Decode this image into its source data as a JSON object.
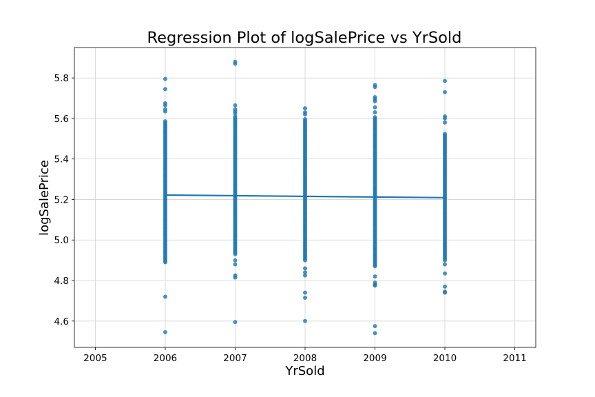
{
  "chart_data": {
    "type": "scatter",
    "title": "Regression Plot of logSalePrice vs YrSold",
    "xlabel": "YrSold",
    "ylabel": "logSalePrice",
    "xlim": [
      2004.7,
      2011.3
    ],
    "ylim": [
      4.47,
      5.95
    ],
    "xticks": [
      2005,
      2006,
      2007,
      2008,
      2009,
      2010,
      2011
    ],
    "yticks": [
      4.6,
      4.8,
      5.0,
      5.2,
      5.4,
      5.6,
      5.8
    ],
    "grid": true,
    "colors": {
      "points": "#1f77b4",
      "line": "#1f77b4",
      "grid": "#d3d3d3"
    },
    "points_by_year": [
      {
        "x": 2006,
        "outliers": [
          5.795,
          5.745,
          5.675,
          5.665,
          5.645,
          5.635,
          4.72,
          4.545
        ],
        "dense_ranges": [
          [
            4.89,
            5.59
          ]
        ]
      },
      {
        "x": 2007,
        "outliers": [
          5.88,
          5.87,
          5.665,
          5.645,
          5.635,
          5.625,
          4.9,
          4.88,
          4.825,
          4.815,
          4.595
        ],
        "dense_ranges": [
          [
            4.93,
            5.61
          ]
        ]
      },
      {
        "x": 2008,
        "outliers": [
          5.65,
          5.63,
          5.62,
          4.86,
          4.84,
          4.825,
          4.74,
          4.715,
          4.6
        ],
        "dense_ranges": [
          [
            4.9,
            5.6
          ]
        ]
      },
      {
        "x": 2009,
        "outliers": [
          5.765,
          5.755,
          5.705,
          5.695,
          5.685,
          5.655,
          5.63,
          4.82,
          4.79,
          4.78,
          4.775,
          4.575,
          4.54
        ],
        "dense_ranges": [
          [
            4.87,
            5.61
          ]
        ]
      },
      {
        "x": 2010,
        "outliers": [
          5.785,
          5.73,
          5.61,
          5.6,
          5.58,
          4.88,
          4.835,
          4.77,
          4.745,
          4.74
        ],
        "dense_ranges": [
          [
            4.9,
            5.53
          ]
        ]
      }
    ],
    "regression_line": {
      "x": [
        2006,
        2010
      ],
      "y": [
        5.222,
        5.209
      ]
    }
  }
}
